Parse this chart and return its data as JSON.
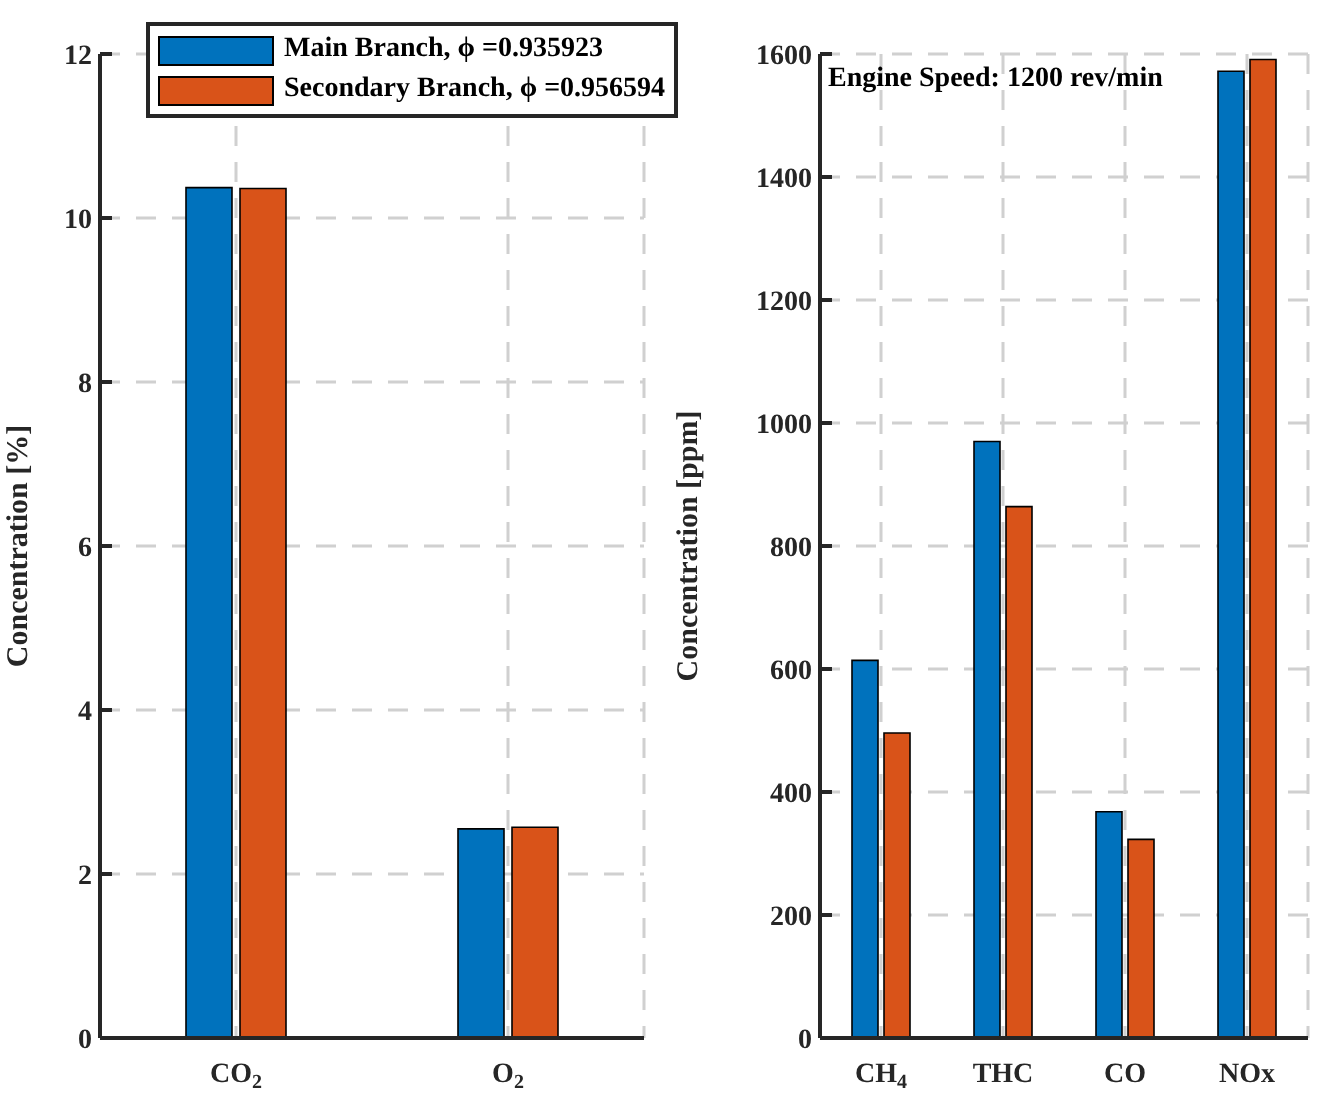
{
  "chart_data": [
    {
      "type": "bar",
      "ylabel": "Concentration [%]",
      "categories": [
        "CO$_{2}$",
        "O$_{2}$"
      ],
      "series": [
        {
          "name": "Main Branch, ϕ =0.935923",
          "color": "#0072bd",
          "values": [
            10.37,
            2.55
          ]
        },
        {
          "name": "Secondary Branch, ϕ =0.956594",
          "color": "#d95319",
          "values": [
            10.36,
            2.57
          ]
        }
      ],
      "ylim": [
        0,
        12
      ],
      "yticks": [
        0,
        2,
        4,
        6,
        8,
        10,
        12
      ],
      "grid": true,
      "legend": "top"
    },
    {
      "type": "bar",
      "ylabel": "Concentration [ppm]",
      "categories": [
        "CH$_{4}$",
        "THC",
        "CO",
        "NOx"
      ],
      "series": [
        {
          "color": "#0072bd",
          "values": [
            614,
            970,
            368,
            1572
          ]
        },
        {
          "color": "#d95319",
          "values": [
            496,
            864,
            323,
            1591
          ]
        }
      ],
      "ylim": [
        0,
        1600
      ],
      "yticks": [
        0,
        200,
        400,
        600,
        800,
        1000,
        1200,
        1400,
        1600
      ],
      "grid": true,
      "annotations": [
        "Engine Speed: 1200 rev/min"
      ]
    }
  ]
}
